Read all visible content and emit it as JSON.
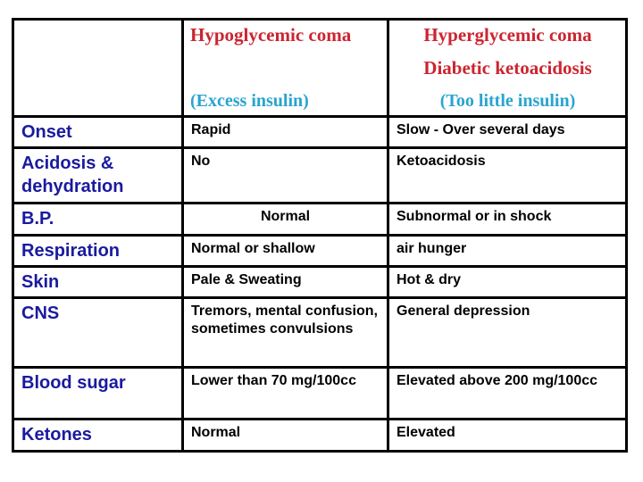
{
  "colors": {
    "header_red": "#cb2531",
    "header_cyan": "#29a4cf",
    "label_navy": "#1a1a9e",
    "data_black": "#000000",
    "border_black": "#000000",
    "background_white": "#ffffff"
  },
  "table": {
    "header": {
      "corner": "",
      "hypoglycemic": {
        "title": "Hypoglycemic coma",
        "subtitle": "(Excess insulin)"
      },
      "hyperglycemic": {
        "title_line1": "Hyperglycemic coma",
        "title_line2": "Diabetic ketoacidosis",
        "subtitle": "(Too little insulin)"
      }
    },
    "rows": [
      {
        "label": "Onset",
        "hypoglycemic": "Rapid",
        "hyperglycemic": "Slow - Over several days"
      },
      {
        "label": "Acidosis & dehydration",
        "hypoglycemic": "No",
        "hyperglycemic": "Ketoacidosis"
      },
      {
        "label": "B.P.",
        "hypoglycemic": "Normal",
        "hyperglycemic": "Subnormal or in shock"
      },
      {
        "label": "Respiration",
        "hypoglycemic": "Normal or shallow",
        "hyperglycemic": "air hunger"
      },
      {
        "label": "Skin",
        "hypoglycemic": "Pale & Sweating",
        "hyperglycemic": "Hot & dry"
      },
      {
        "label": "CNS",
        "hypoglycemic": "Tremors, mental confusion, sometimes convulsions",
        "hyperglycemic": "General depression"
      },
      {
        "label": "Blood sugar",
        "hypoglycemic": "Lower than 70 mg/100cc",
        "hyperglycemic": "Elevated above 200 mg/100cc"
      },
      {
        "label": "Ketones",
        "hypoglycemic": "Normal",
        "hyperglycemic": "Elevated"
      }
    ]
  }
}
